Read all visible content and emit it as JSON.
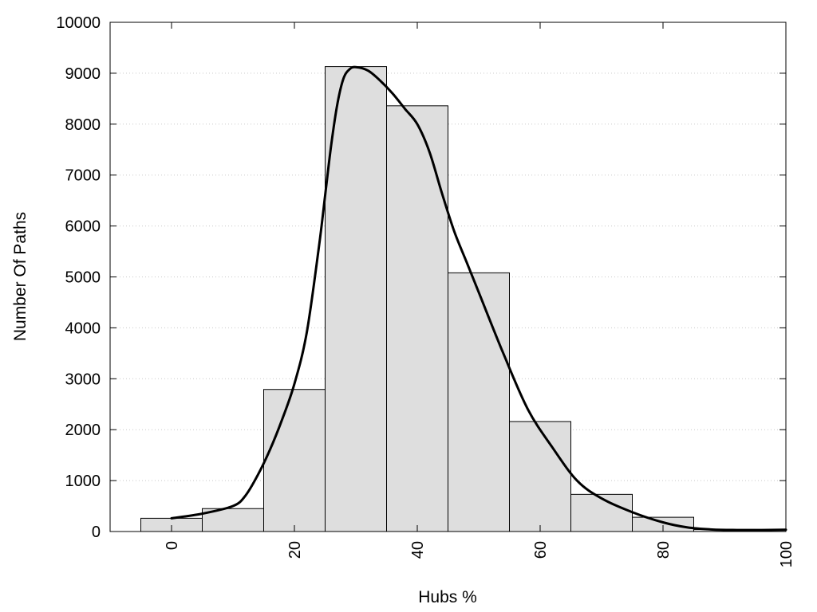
{
  "chart_data": {
    "type": "bar",
    "title": "",
    "xlabel": "Hubs %",
    "ylabel": "Number Of Paths",
    "xlim": [
      -10,
      100
    ],
    "ylim": [
      0,
      10000
    ],
    "x_ticks": [
      0,
      20,
      40,
      60,
      80,
      100
    ],
    "y_ticks": [
      0,
      1000,
      2000,
      3000,
      4000,
      5000,
      6000,
      7000,
      8000,
      9000,
      10000
    ],
    "grid": "horizontal-dotted",
    "bar_color": "#dedede",
    "line_color": "#000000",
    "bin_width": 10,
    "bins": [
      {
        "center": 0,
        "value": 260
      },
      {
        "center": 10,
        "value": 450
      },
      {
        "center": 20,
        "value": 2790
      },
      {
        "center": 30,
        "value": 9130
      },
      {
        "center": 40,
        "value": 8360
      },
      {
        "center": 50,
        "value": 5080
      },
      {
        "center": 60,
        "value": 2160
      },
      {
        "center": 70,
        "value": 730
      },
      {
        "center": 80,
        "value": 280
      },
      {
        "center": 90,
        "value": 40
      },
      {
        "center": 100,
        "value": 35
      }
    ],
    "curve": {
      "x": [
        0,
        5,
        10,
        12,
        14,
        16,
        18,
        20,
        22,
        24,
        25,
        26,
        27,
        28,
        29,
        30,
        32,
        34,
        36,
        38,
        40,
        42,
        44,
        46,
        48,
        50,
        54,
        58,
        62,
        66,
        70,
        75,
        80,
        84,
        88,
        92,
        96,
        100
      ],
      "y": [
        260,
        350,
        500,
        700,
        1100,
        1600,
        2200,
        2900,
        3900,
        5600,
        6600,
        7600,
        8400,
        8900,
        9080,
        9120,
        9050,
        8850,
        8600,
        8300,
        8000,
        7450,
        6650,
        5900,
        5300,
        4700,
        3500,
        2400,
        1650,
        1000,
        650,
        380,
        180,
        80,
        40,
        30,
        30,
        35
      ]
    }
  }
}
